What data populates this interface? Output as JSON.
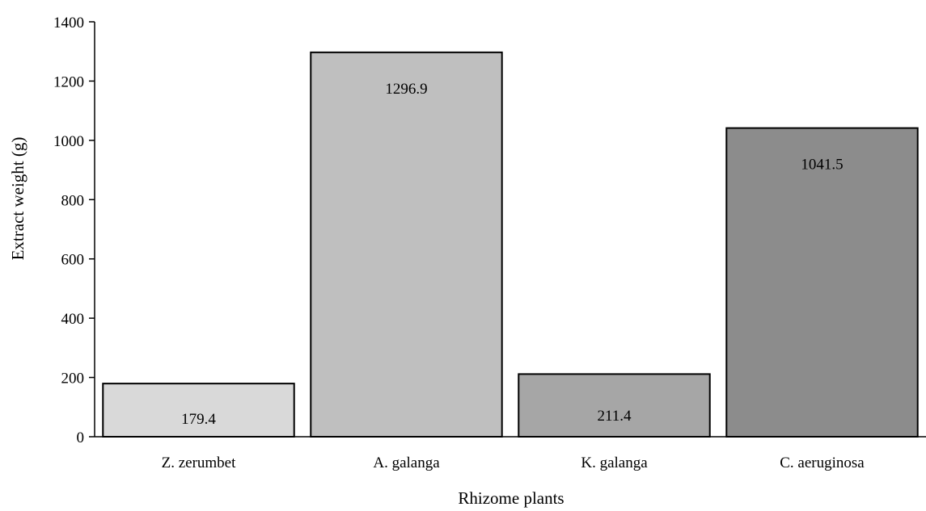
{
  "chart_data": {
    "type": "bar",
    "title": "",
    "xlabel": "Rhizome plants",
    "ylabel": "Extract weight (g)",
    "categories": [
      "Z. zerumbet",
      "A. galanga",
      "K. galanga",
      "C. aeruginosa"
    ],
    "values": [
      179.4,
      1296.9,
      211.4,
      1041.5
    ],
    "data_labels": [
      "179.4",
      "1296.9",
      "211.4",
      "1041.5"
    ],
    "bar_colors": [
      "#d9d9d9",
      "#bfbfbf",
      "#a6a6a6",
      "#8c8c8c"
    ],
    "edge_color": "#000000",
    "ylim": [
      0,
      1400
    ],
    "yticks": [
      0,
      200,
      400,
      600,
      800,
      1000,
      1200,
      1400
    ],
    "ytick_labels": [
      "0",
      "200",
      "400",
      "600",
      "800",
      "1000",
      "1200",
      "1400"
    ],
    "grid": false,
    "legend": "none"
  }
}
